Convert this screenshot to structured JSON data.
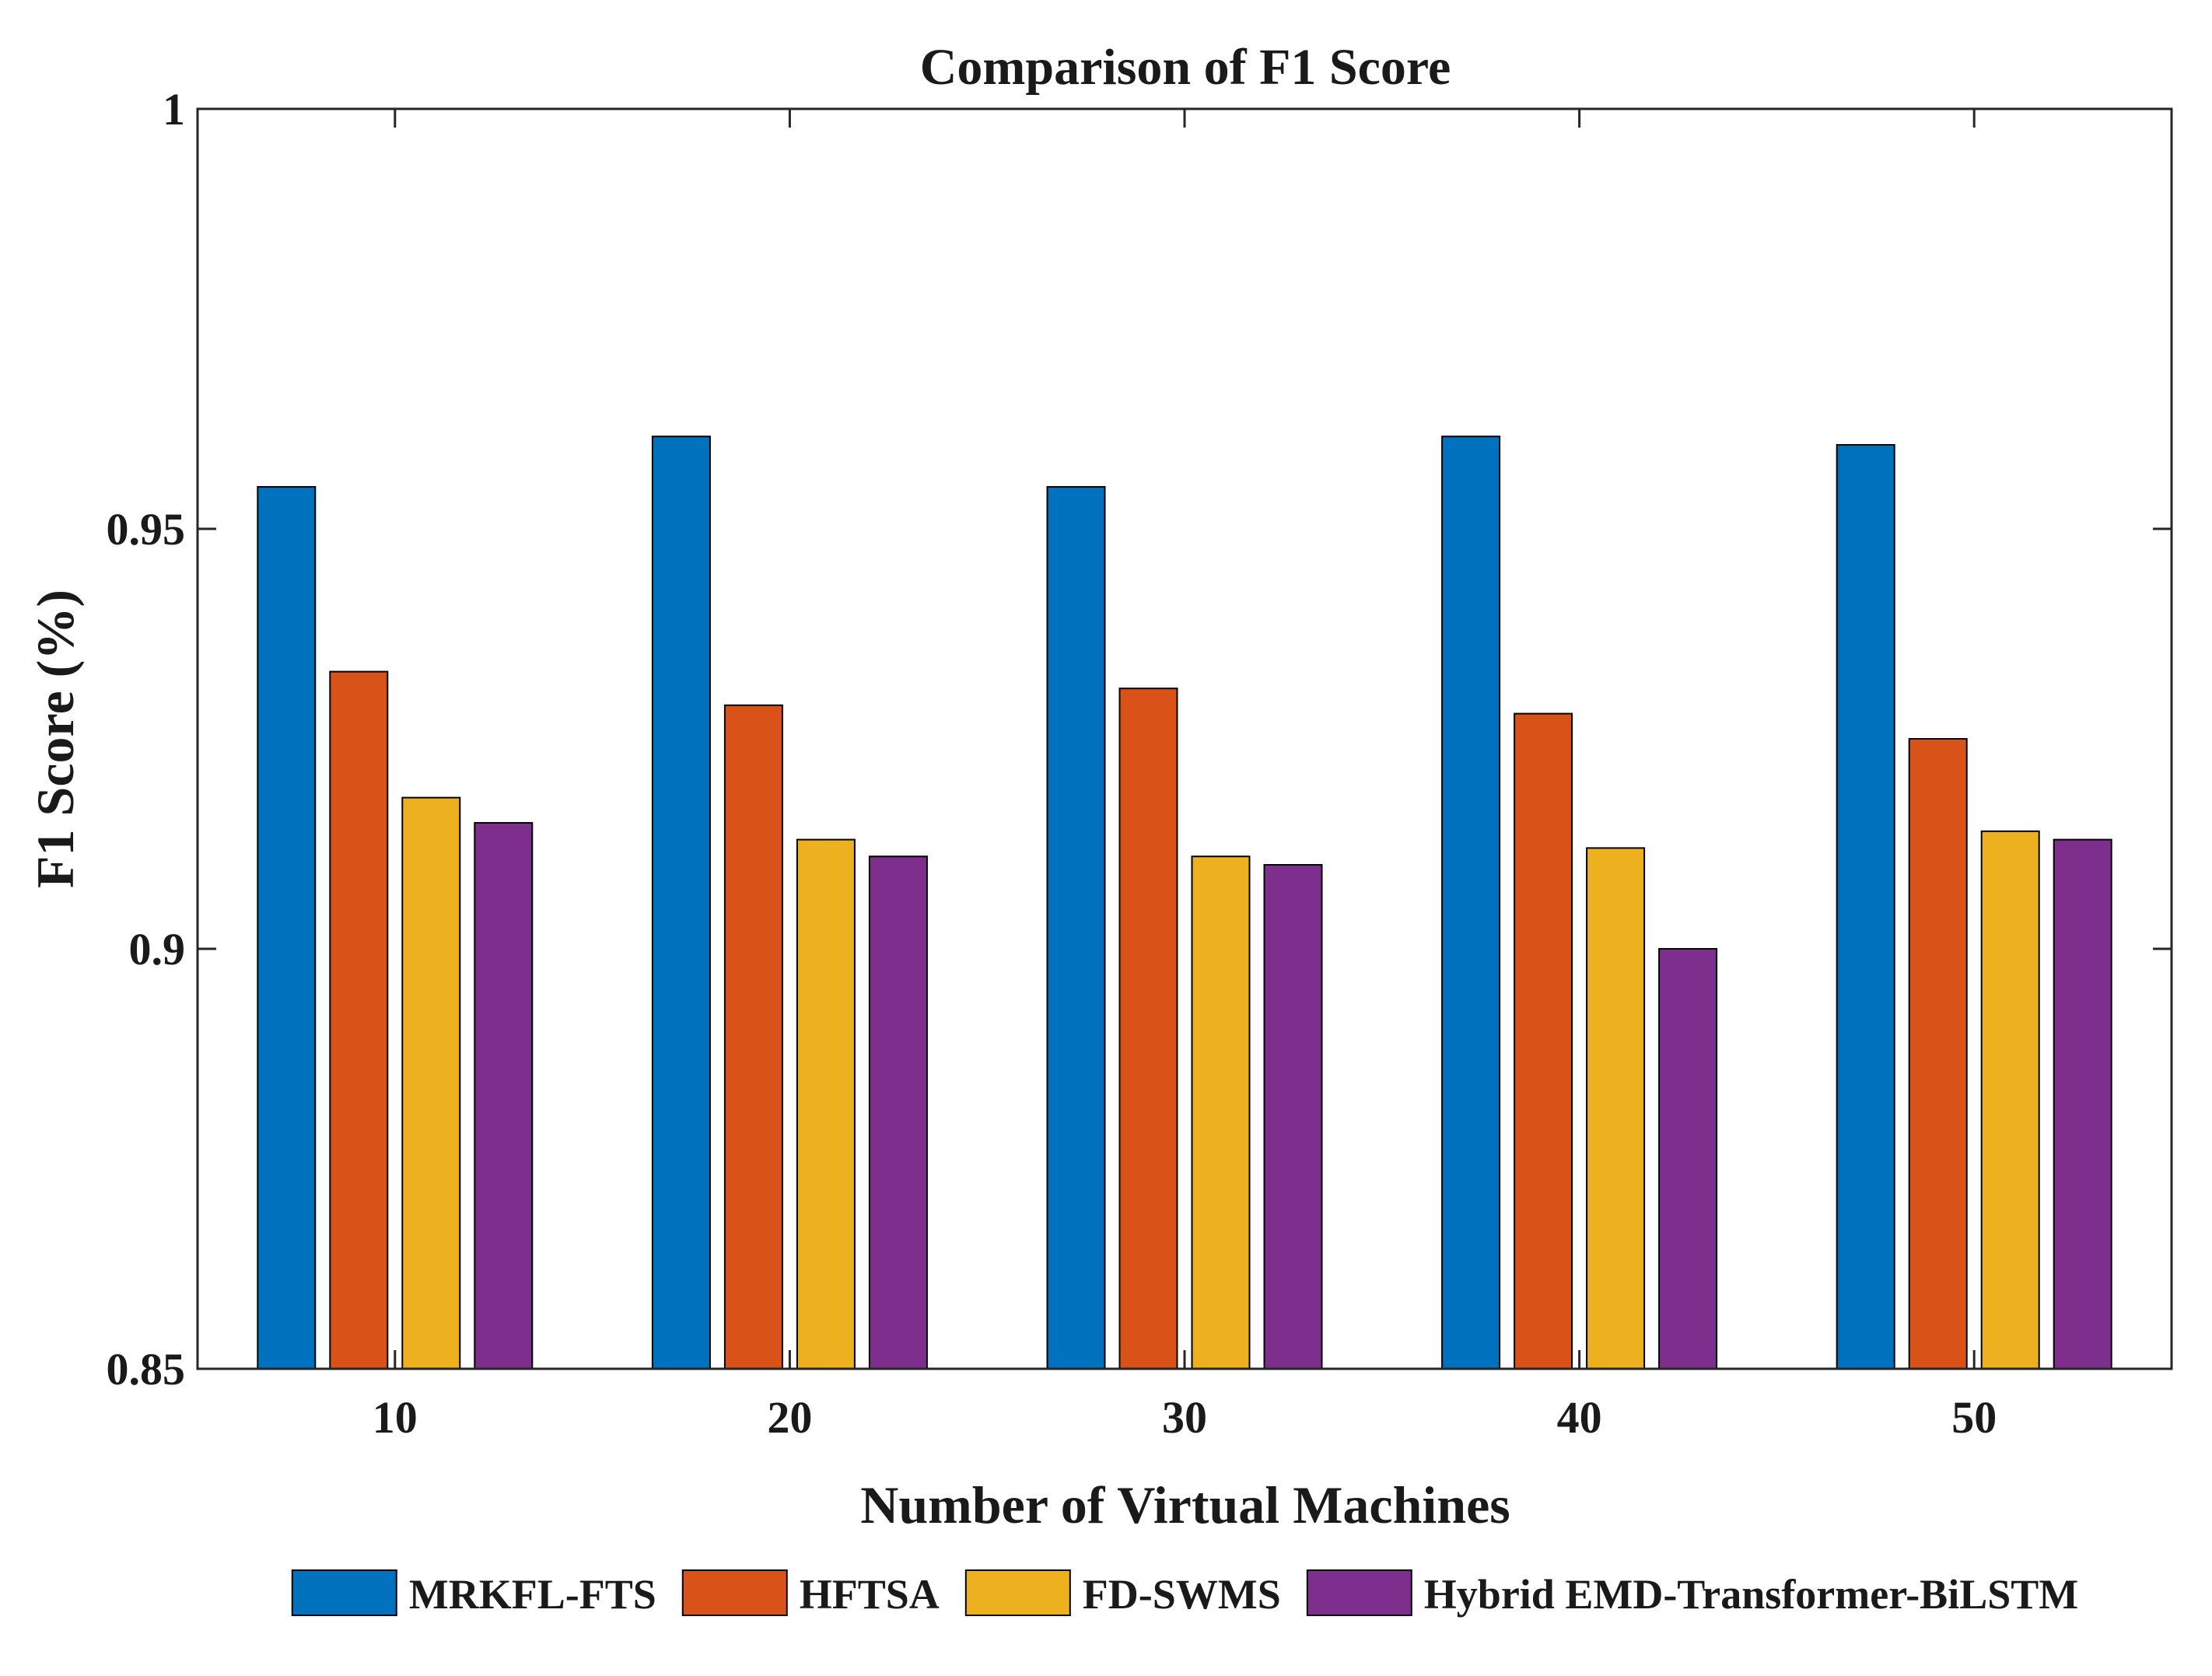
{
  "chart_data": {
    "type": "bar",
    "title": "Comparison of F1 Score",
    "xlabel": "Number of Virtual Machines",
    "ylabel": "F1 Score (%)",
    "categories": [
      "10",
      "20",
      "30",
      "40",
      "50"
    ],
    "ylim": [
      0.85,
      1
    ],
    "yticks": [
      0.85,
      0.9,
      0.95,
      1
    ],
    "ytick_labels": [
      "0.85",
      "0.9",
      "0.95",
      "1"
    ],
    "grid": false,
    "legend_position": "bottom",
    "series": [
      {
        "name": "MRKFL-FTS",
        "color": "#0072BD",
        "values": [
          0.955,
          0.961,
          0.955,
          0.961,
          0.96
        ]
      },
      {
        "name": "HFTSA",
        "color": "#D95319",
        "values": [
          0.933,
          0.929,
          0.931,
          0.928,
          0.925
        ]
      },
      {
        "name": "FD-SWMS",
        "color": "#EDB120",
        "values": [
          0.918,
          0.913,
          0.911,
          0.912,
          0.914
        ]
      },
      {
        "name": "Hybrid EMD-Transformer-BiLSTM",
        "color": "#7E2F8E",
        "values": [
          0.915,
          0.911,
          0.91,
          0.9,
          0.913
        ]
      }
    ]
  }
}
